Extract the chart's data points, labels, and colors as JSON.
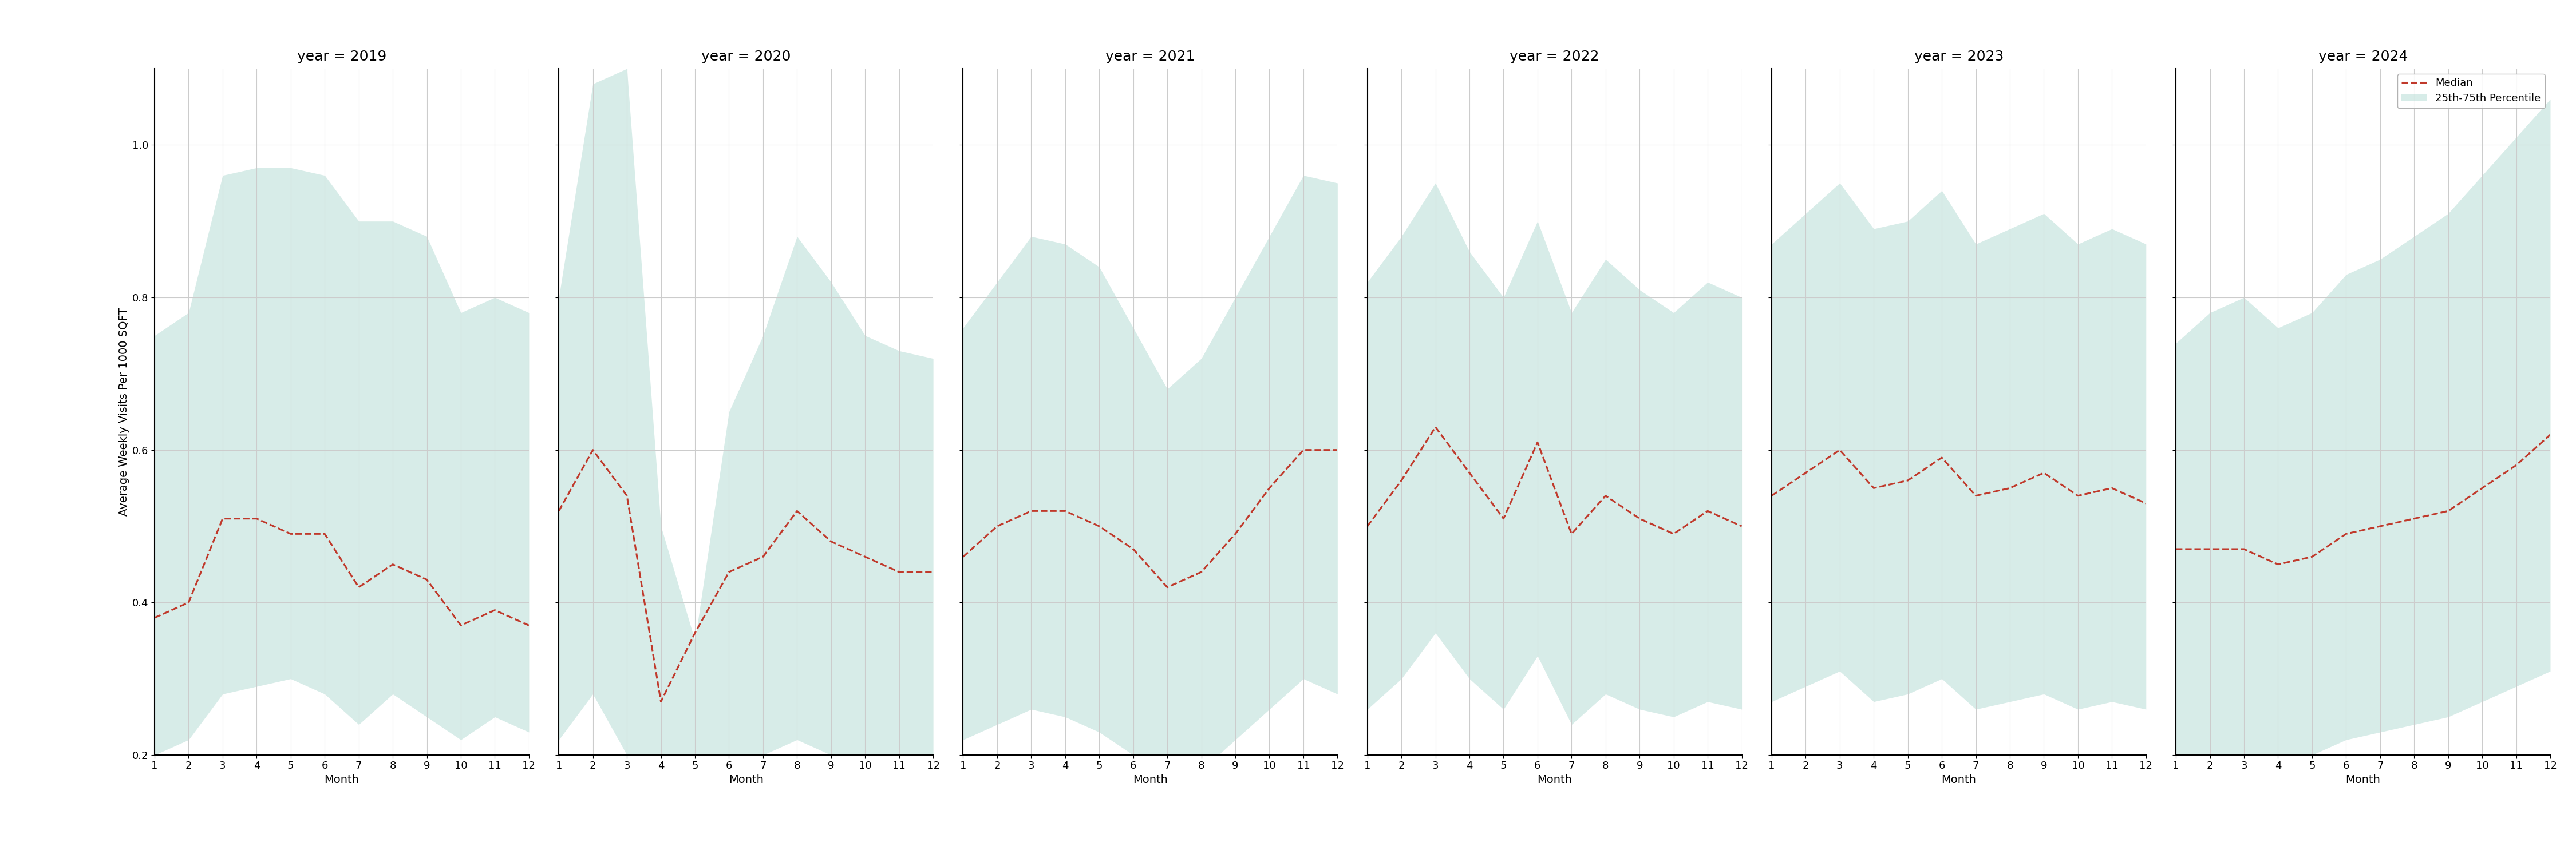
{
  "years": [
    2019,
    2020,
    2021,
    2022,
    2023,
    2024
  ],
  "months": [
    1,
    2,
    3,
    4,
    5,
    6,
    7,
    8,
    9,
    10,
    11,
    12
  ],
  "median": {
    "2019": [
      0.38,
      0.4,
      0.51,
      0.51,
      0.49,
      0.49,
      0.42,
      0.45,
      0.43,
      0.37,
      0.39,
      0.37
    ],
    "2020": [
      0.52,
      0.6,
      0.54,
      0.27,
      0.36,
      0.44,
      0.46,
      0.52,
      0.48,
      0.46,
      0.44,
      0.44
    ],
    "2021": [
      0.46,
      0.5,
      0.52,
      0.52,
      0.5,
      0.47,
      0.42,
      0.44,
      0.49,
      0.55,
      0.6,
      0.6
    ],
    "2022": [
      0.5,
      0.56,
      0.63,
      0.57,
      0.51,
      0.61,
      0.49,
      0.54,
      0.51,
      0.49,
      0.52,
      0.5
    ],
    "2023": [
      0.54,
      0.57,
      0.6,
      0.55,
      0.56,
      0.59,
      0.54,
      0.55,
      0.57,
      0.54,
      0.55,
      0.53
    ],
    "2024": [
      0.47,
      0.47,
      0.47,
      0.45,
      0.46,
      0.49,
      0.5,
      0.51,
      0.52,
      0.55,
      0.58,
      0.62
    ]
  },
  "p25": {
    "2019": [
      0.2,
      0.22,
      0.28,
      0.29,
      0.3,
      0.28,
      0.24,
      0.28,
      0.25,
      0.22,
      0.25,
      0.23
    ],
    "2020": [
      0.22,
      0.28,
      0.2,
      0.2,
      0.2,
      0.2,
      0.2,
      0.22,
      0.2,
      0.2,
      0.2,
      0.2
    ],
    "2021": [
      0.22,
      0.24,
      0.26,
      0.25,
      0.23,
      0.2,
      0.17,
      0.18,
      0.22,
      0.26,
      0.3,
      0.28
    ],
    "2022": [
      0.26,
      0.3,
      0.36,
      0.3,
      0.26,
      0.33,
      0.24,
      0.28,
      0.26,
      0.25,
      0.27,
      0.26
    ],
    "2023": [
      0.27,
      0.29,
      0.31,
      0.27,
      0.28,
      0.3,
      0.26,
      0.27,
      0.28,
      0.26,
      0.27,
      0.26
    ],
    "2024": [
      0.2,
      0.2,
      0.2,
      0.2,
      0.2,
      0.22,
      0.23,
      0.24,
      0.25,
      0.27,
      0.29,
      0.31
    ]
  },
  "p75": {
    "2019": [
      0.75,
      0.78,
      0.96,
      0.97,
      0.97,
      0.96,
      0.9,
      0.9,
      0.88,
      0.78,
      0.8,
      0.78
    ],
    "2020": [
      0.8,
      1.08,
      1.1,
      0.5,
      0.35,
      0.65,
      0.75,
      0.88,
      0.82,
      0.75,
      0.73,
      0.72
    ],
    "2021": [
      0.76,
      0.82,
      0.88,
      0.87,
      0.84,
      0.76,
      0.68,
      0.72,
      0.8,
      0.88,
      0.96,
      0.95
    ],
    "2022": [
      0.82,
      0.88,
      0.95,
      0.86,
      0.8,
      0.9,
      0.78,
      0.85,
      0.81,
      0.78,
      0.82,
      0.8
    ],
    "2023": [
      0.87,
      0.91,
      0.95,
      0.89,
      0.9,
      0.94,
      0.87,
      0.89,
      0.91,
      0.87,
      0.89,
      0.87
    ],
    "2024": [
      0.74,
      0.78,
      0.8,
      0.76,
      0.78,
      0.83,
      0.85,
      0.88,
      0.91,
      0.96,
      1.01,
      1.06
    ]
  },
  "fill_color": "#a8d5cc",
  "fill_alpha": 0.45,
  "line_color": "#c0392b",
  "line_style": "--",
  "line_width": 2.2,
  "ylabel": "Average Weekly Visits Per 1000 SQFT",
  "xlabel": "Month",
  "ylim": [
    0.2,
    1.1
  ],
  "yticks": [
    0.2,
    0.4,
    0.6,
    0.8,
    1.0
  ],
  "background_color": "#ffffff",
  "grid_color": "#cccccc",
  "title_fontsize": 18,
  "label_fontsize": 14,
  "tick_fontsize": 13,
  "legend_labels": [
    "Median",
    "25th-75th Percentile"
  ]
}
